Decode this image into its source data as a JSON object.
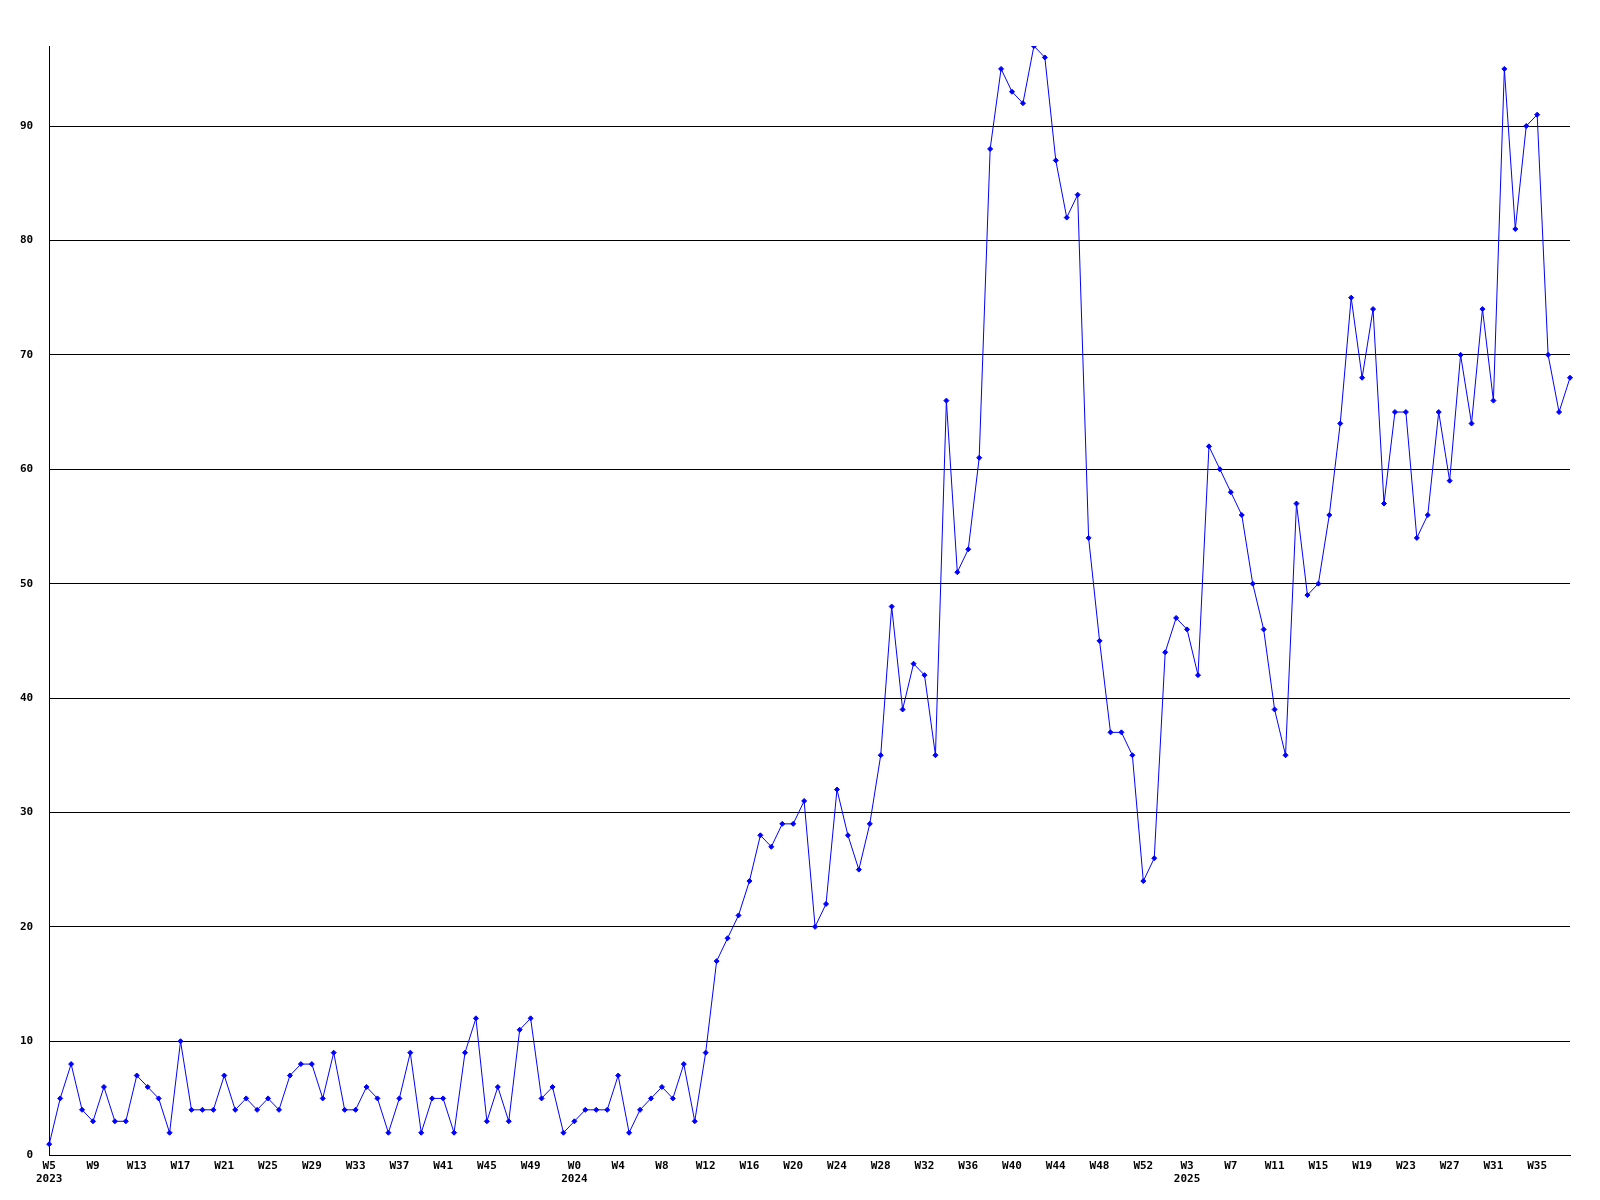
{
  "chart_data": {
    "type": "line",
    "categories": [
      "W5\n2023",
      null,
      null,
      null,
      "W9",
      null,
      null,
      null,
      "W13",
      null,
      null,
      null,
      "W17",
      null,
      null,
      null,
      "W21",
      null,
      null,
      null,
      "W25",
      null,
      null,
      null,
      "W29",
      null,
      null,
      null,
      "W33",
      null,
      null,
      null,
      "W37",
      null,
      null,
      null,
      "W41",
      null,
      null,
      null,
      "W45",
      null,
      null,
      null,
      "W49",
      null,
      null,
      null,
      "W0\n2024",
      null,
      null,
      null,
      "W4",
      null,
      null,
      null,
      "W8",
      null,
      null,
      null,
      "W12",
      null,
      null,
      null,
      "W16",
      null,
      null,
      null,
      "W20",
      null,
      null,
      null,
      "W24",
      null,
      null,
      null,
      "W28",
      null,
      null,
      null,
      "W32",
      null,
      null,
      null,
      "W36",
      null,
      null,
      null,
      "W40",
      null,
      null,
      null,
      "W44",
      null,
      null,
      null,
      "W48",
      null,
      null,
      null,
      "W52",
      null,
      null,
      null,
      "W3\n2025",
      null,
      null,
      null,
      "W7",
      null,
      null,
      null,
      "W11",
      null,
      null,
      null,
      "W15",
      null,
      null,
      null,
      "W19",
      null,
      null,
      null,
      "W23",
      null,
      null,
      null,
      "W27",
      null,
      null,
      null,
      "W31",
      null,
      null,
      null,
      "W35",
      null,
      null,
      null
    ],
    "series": [
      {
        "color": "#0000ff",
        "values": [
          1,
          5,
          8,
          4,
          3,
          6,
          3,
          3,
          7,
          6,
          5,
          2,
          10,
          4,
          4,
          4,
          7,
          4,
          5,
          4,
          5,
          4,
          7,
          8,
          8,
          5,
          9,
          4,
          4,
          6,
          5,
          2,
          5,
          9,
          2,
          5,
          5,
          2,
          9,
          12,
          3,
          6,
          3,
          11,
          12,
          5,
          6,
          2,
          3,
          4,
          4,
          4,
          7,
          2,
          4,
          5,
          6,
          5,
          8,
          3,
          9,
          17,
          19,
          21,
          24,
          28,
          27,
          29,
          29,
          31,
          20,
          22,
          32,
          28,
          25,
          29,
          35,
          48,
          39,
          43,
          42,
          35,
          66,
          51,
          53,
          61,
          88,
          95,
          93,
          92,
          97,
          96,
          87,
          82,
          84,
          54,
          45,
          37,
          37,
          35,
          24,
          26,
          44,
          47,
          46,
          42,
          62,
          60,
          58,
          56,
          50,
          46,
          39,
          35,
          57,
          49,
          50,
          56,
          64,
          75,
          68,
          74,
          57,
          65,
          65,
          54,
          56,
          65,
          59,
          70,
          64,
          74,
          66,
          95,
          81,
          90,
          91,
          70,
          65,
          68
        ]
      }
    ],
    "ylim": [
      0,
      97
    ],
    "yticks": [
      0,
      10,
      20,
      30,
      40,
      50,
      60,
      70,
      80,
      90
    ],
    "grid": "y",
    "legend": false,
    "marker": "diamond",
    "line_style": "solid"
  }
}
